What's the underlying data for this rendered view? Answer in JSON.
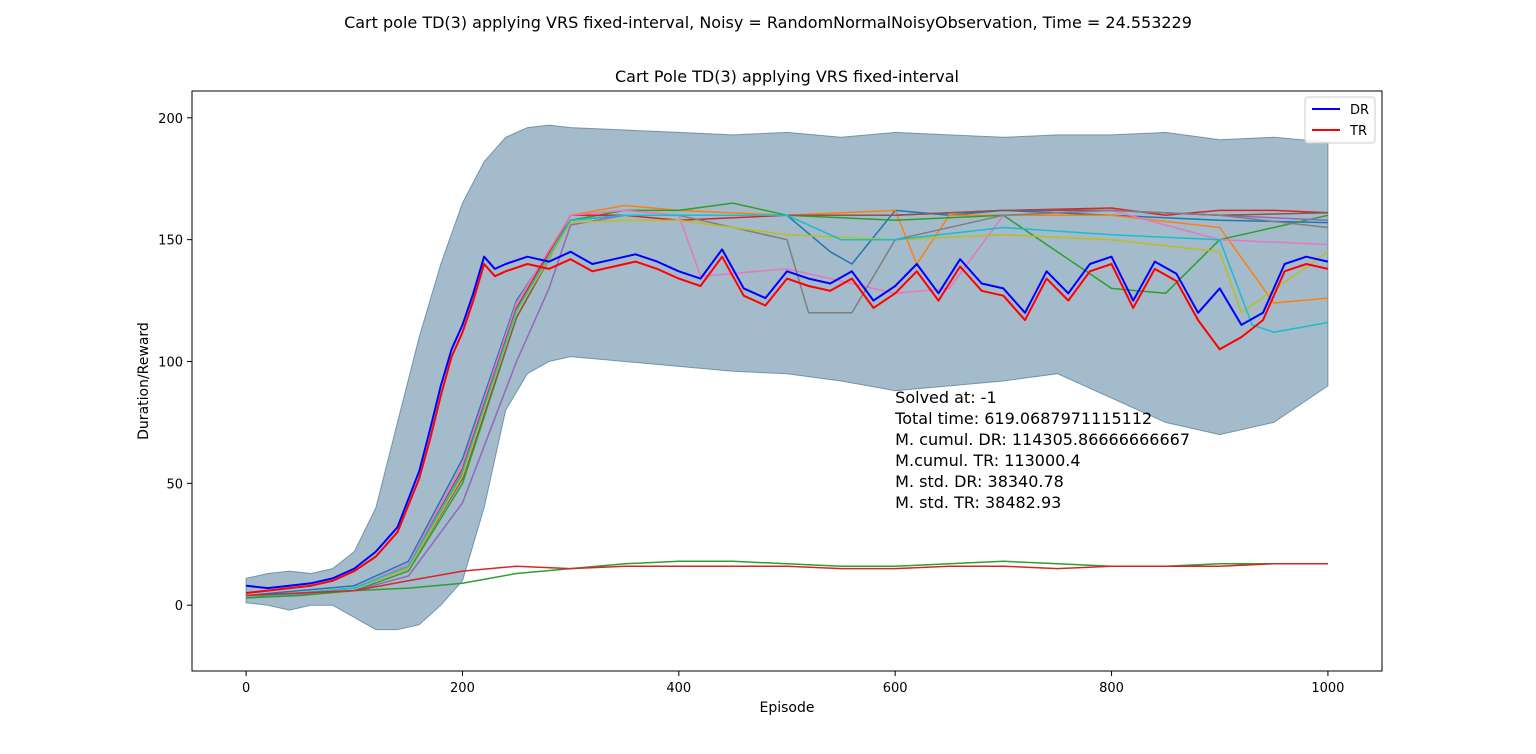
{
  "figure": {
    "suptitle": "Cart pole TD(3) applying VRS fixed-interval, Noisy = RandomNormalNoisyObservation, Time = 24.553229"
  },
  "chart_data": {
    "type": "line",
    "title": "Cart Pole TD(3) applying VRS fixed-interval",
    "xlabel": "Episode",
    "ylabel": "Duration/Reward",
    "xlim": [
      -50,
      1050
    ],
    "ylim": [
      -27,
      211
    ],
    "xticks": [
      0,
      200,
      400,
      600,
      800,
      1000
    ],
    "yticks": [
      0,
      50,
      100,
      150,
      200
    ],
    "grid": false,
    "legend": {
      "placement": "top-right",
      "entries": [
        {
          "label": "DR",
          "color": "#0000ff"
        },
        {
          "label": "TR",
          "color": "#ff0000"
        }
      ]
    },
    "band": {
      "color": "#4a7898",
      "x": [
        0,
        20,
        40,
        60,
        80,
        100,
        120,
        140,
        160,
        180,
        200,
        220,
        240,
        260,
        280,
        300,
        350,
        400,
        450,
        500,
        550,
        600,
        650,
        700,
        750,
        800,
        850,
        900,
        950,
        1000
      ],
      "upper": [
        11,
        13,
        14,
        13,
        15,
        22,
        40,
        75,
        110,
        140,
        165,
        182,
        192,
        196,
        197,
        196,
        195,
        194,
        193,
        194,
        192,
        194,
        193,
        192,
        193,
        193,
        194,
        191,
        192,
        190
      ],
      "lower": [
        1,
        0,
        -2,
        0,
        0,
        -5,
        -10,
        -10,
        -8,
        0,
        10,
        40,
        80,
        95,
        100,
        102,
        100,
        98,
        96,
        95,
        92,
        88,
        90,
        92,
        95,
        85,
        75,
        70,
        75,
        90
      ]
    },
    "series": [
      {
        "name": "DR",
        "color": "#0000ff",
        "width": 2,
        "x": [
          0,
          20,
          40,
          60,
          80,
          100,
          120,
          140,
          160,
          170,
          180,
          190,
          200,
          210,
          220,
          230,
          240,
          260,
          280,
          300,
          320,
          340,
          360,
          380,
          400,
          420,
          440,
          460,
          480,
          500,
          520,
          540,
          560,
          580,
          600,
          620,
          640,
          660,
          680,
          700,
          720,
          740,
          760,
          780,
          800,
          820,
          840,
          860,
          880,
          900,
          920,
          940,
          960,
          980,
          1000
        ],
        "y": [
          8,
          7,
          8,
          9,
          11,
          15,
          22,
          32,
          55,
          72,
          90,
          105,
          115,
          128,
          143,
          138,
          140,
          143,
          141,
          145,
          140,
          142,
          144,
          141,
          137,
          134,
          146,
          130,
          126,
          137,
          134,
          132,
          137,
          125,
          131,
          140,
          128,
          142,
          132,
          130,
          120,
          137,
          128,
          140,
          143,
          125,
          141,
          136,
          120,
          130,
          115,
          120,
          140,
          143,
          141
        ]
      },
      {
        "name": "TR",
        "color": "#ff0000",
        "width": 2,
        "x": [
          0,
          20,
          40,
          60,
          80,
          100,
          120,
          140,
          160,
          170,
          180,
          190,
          200,
          210,
          220,
          230,
          240,
          260,
          280,
          300,
          320,
          340,
          360,
          380,
          400,
          420,
          440,
          460,
          480,
          500,
          520,
          540,
          560,
          580,
          600,
          620,
          640,
          660,
          680,
          700,
          720,
          740,
          760,
          780,
          800,
          820,
          840,
          860,
          880,
          900,
          920,
          940,
          960,
          980,
          1000
        ],
        "y": [
          5,
          6,
          7,
          8,
          10,
          14,
          20,
          30,
          52,
          68,
          86,
          102,
          112,
          125,
          140,
          135,
          137,
          140,
          138,
          142,
          137,
          139,
          141,
          138,
          134,
          131,
          143,
          127,
          123,
          134,
          131,
          129,
          134,
          122,
          128,
          137,
          125,
          139,
          129,
          127,
          117,
          134,
          125,
          137,
          140,
          122,
          138,
          133,
          117,
          105,
          110,
          117,
          137,
          140,
          138
        ]
      },
      {
        "color": "#1f77b4",
        "width": 1.5,
        "x": [
          0,
          100,
          150,
          200,
          250,
          300,
          350,
          400,
          500,
          540,
          560,
          600,
          650,
          700,
          800,
          900,
          1000
        ],
        "y": [
          4,
          8,
          18,
          60,
          125,
          158,
          160,
          160,
          160,
          145,
          140,
          162,
          160,
          162,
          160,
          158,
          157
        ]
      },
      {
        "color": "#ff7f0e",
        "width": 1.5,
        "x": [
          0,
          100,
          150,
          200,
          250,
          300,
          350,
          400,
          500,
          600,
          620,
          650,
          700,
          800,
          900,
          950,
          1000
        ],
        "y": [
          3,
          7,
          15,
          55,
          120,
          160,
          164,
          162,
          160,
          162,
          140,
          160,
          160,
          160,
          155,
          124,
          126
        ]
      },
      {
        "color": "#2ca02c",
        "width": 1.5,
        "x": [
          0,
          100,
          150,
          200,
          250,
          300,
          350,
          400,
          450,
          500,
          600,
          700,
          800,
          850,
          900,
          1000
        ],
        "y": [
          3,
          6,
          14,
          50,
          118,
          158,
          162,
          162,
          165,
          160,
          158,
          160,
          130,
          128,
          150,
          160
        ]
      },
      {
        "color": "#d62728",
        "width": 1.5,
        "x": [
          0,
          100,
          150,
          200,
          250,
          300,
          350,
          400,
          500,
          600,
          700,
          800,
          850,
          900,
          950,
          1000
        ],
        "y": [
          3,
          7,
          16,
          56,
          122,
          160,
          160,
          158,
          160,
          160,
          162,
          163,
          160,
          162,
          162,
          161
        ]
      },
      {
        "color": "#9467bd",
        "width": 1.5,
        "x": [
          0,
          100,
          150,
          200,
          250,
          280,
          300,
          350,
          400,
          500,
          600,
          700,
          800,
          900,
          1000
        ],
        "y": [
          3,
          6,
          12,
          42,
          100,
          130,
          156,
          160,
          160,
          160,
          160,
          162,
          162,
          160,
          158
        ]
      },
      {
        "color": "#8c564b",
        "width": 1.5,
        "x": [
          0,
          100,
          150,
          200,
          250,
          300,
          350,
          400,
          500,
          600,
          700,
          800,
          900,
          1000
        ],
        "y": [
          3,
          7,
          15,
          52,
          118,
          158,
          160,
          160,
          160,
          160,
          162,
          162,
          160,
          161
        ]
      },
      {
        "color": "#e377c2",
        "width": 1.5,
        "x": [
          0,
          100,
          150,
          200,
          250,
          300,
          350,
          400,
          420,
          500,
          600,
          650,
          700,
          800,
          900,
          1000
        ],
        "y": [
          3,
          7,
          17,
          58,
          124,
          160,
          162,
          160,
          135,
          138,
          128,
          130,
          160,
          162,
          150,
          148
        ]
      },
      {
        "color": "#7f7f7f",
        "width": 1.5,
        "x": [
          0,
          100,
          150,
          200,
          250,
          300,
          350,
          400,
          500,
          520,
          560,
          600,
          700,
          800,
          900,
          1000
        ],
        "y": [
          3,
          7,
          15,
          54,
          120,
          158,
          160,
          160,
          150,
          120,
          120,
          150,
          160,
          162,
          160,
          155
        ]
      },
      {
        "color": "#bcbd22",
        "width": 1.5,
        "x": [
          0,
          100,
          150,
          200,
          250,
          300,
          350,
          400,
          500,
          600,
          700,
          800,
          900,
          920,
          1000
        ],
        "y": [
          3,
          7,
          15,
          53,
          120,
          157,
          158,
          158,
          152,
          150,
          152,
          150,
          145,
          120,
          145
        ]
      },
      {
        "color": "#17becf",
        "width": 1.5,
        "x": [
          0,
          100,
          150,
          200,
          250,
          300,
          350,
          400,
          500,
          550,
          600,
          700,
          800,
          900,
          930,
          950,
          1000
        ],
        "y": [
          3,
          7,
          16,
          55,
          121,
          158,
          160,
          160,
          160,
          150,
          150,
          155,
          152,
          150,
          115,
          112,
          116
        ]
      },
      {
        "color": "#2ca02c",
        "width": 1.5,
        "x": [
          0,
          50,
          100,
          150,
          200,
          250,
          300,
          350,
          400,
          450,
          500,
          550,
          600,
          650,
          700,
          750,
          800,
          850,
          900,
          950,
          1000
        ],
        "y": [
          3,
          4,
          6,
          7,
          9,
          13,
          15,
          17,
          18,
          18,
          17,
          16,
          16,
          17,
          18,
          17,
          16,
          16,
          17,
          17,
          17
        ]
      },
      {
        "color": "#d62728",
        "width": 1.5,
        "x": [
          0,
          50,
          100,
          150,
          200,
          250,
          300,
          350,
          400,
          450,
          500,
          550,
          600,
          650,
          700,
          750,
          800,
          850,
          900,
          950,
          1000
        ],
        "y": [
          4,
          5,
          6,
          10,
          14,
          16,
          15,
          16,
          16,
          16,
          16,
          15,
          15,
          16,
          16,
          15,
          16,
          16,
          16,
          17,
          17
        ]
      }
    ],
    "annotation": {
      "x": 600,
      "y": 83,
      "lines": [
        "Solved at: -1",
        "Total time: 619.0687971115112",
        "M. cumul. DR: 114305.86666666667",
        "M.cumul. TR: 113000.4",
        "M. std. DR: 38340.78",
        "M. std. TR: 38482.93"
      ]
    }
  }
}
